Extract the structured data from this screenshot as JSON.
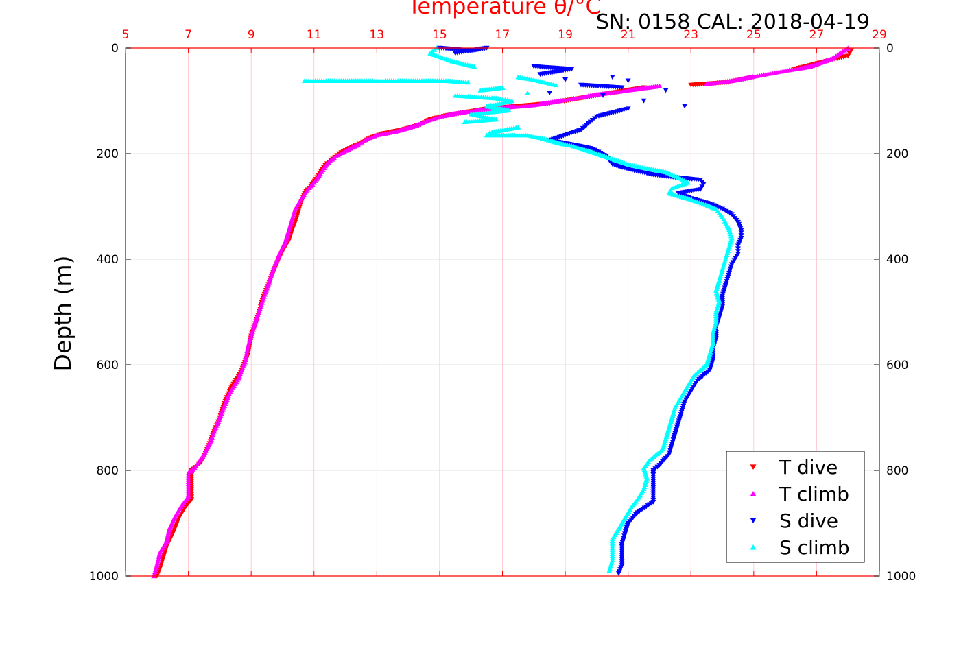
{
  "chart_data": {
    "type": "scatter",
    "title": "Temperature θ/°C",
    "subtitle": "SN: 0158  CAL: 2018-04-19",
    "xlabel": "Temperature θ/°C",
    "ylabel": "Depth (m)",
    "xlim": [
      5,
      29
    ],
    "ylim": [
      0,
      1000
    ],
    "y_reversed": true,
    "x_ticks": [
      "5",
      "7",
      "9",
      "11",
      "13",
      "15",
      "17",
      "19",
      "21",
      "23",
      "25",
      "27",
      "29"
    ],
    "y_ticks": [
      "0",
      "200",
      "400",
      "600",
      "800",
      "1000"
    ],
    "grid": true,
    "legend_position": "bottom-right",
    "series": [
      {
        "name": "T dive",
        "marker": "triangle-down",
        "color": "#ff0000",
        "points": [
          [
            28.1,
            5
          ],
          [
            28.0,
            15
          ],
          [
            27.3,
            25
          ],
          [
            26.3,
            40
          ],
          [
            25.0,
            55
          ],
          [
            24.2,
            65
          ],
          [
            23.0,
            70
          ],
          [
            21.5,
            75
          ],
          [
            20.5,
            85
          ],
          [
            19.5,
            95
          ],
          [
            18.5,
            105
          ],
          [
            17.5,
            110
          ],
          [
            16.5,
            115
          ],
          [
            15.8,
            122
          ],
          [
            15.2,
            128
          ],
          [
            14.7,
            135
          ],
          [
            14.4,
            145
          ],
          [
            13.8,
            155
          ],
          [
            13.2,
            162
          ],
          [
            12.8,
            170
          ],
          [
            12.5,
            180
          ],
          [
            12.2,
            188
          ],
          [
            11.8,
            200
          ],
          [
            11.6,
            210
          ],
          [
            11.3,
            225
          ],
          [
            11.1,
            245
          ],
          [
            10.9,
            262
          ],
          [
            10.7,
            275
          ],
          [
            10.6,
            290
          ],
          [
            10.5,
            310
          ],
          [
            10.4,
            330
          ],
          [
            10.3,
            345
          ],
          [
            10.2,
            365
          ],
          [
            10.0,
            385
          ],
          [
            9.8,
            410
          ],
          [
            9.6,
            440
          ],
          [
            9.4,
            470
          ],
          [
            9.2,
            510
          ],
          [
            9.0,
            545
          ],
          [
            8.9,
            580
          ],
          [
            8.7,
            610
          ],
          [
            8.4,
            640
          ],
          [
            8.2,
            665
          ],
          [
            8.0,
            700
          ],
          [
            7.8,
            730
          ],
          [
            7.6,
            760
          ],
          [
            7.4,
            785
          ],
          [
            7.1,
            800
          ],
          [
            7.1,
            820
          ],
          [
            7.1,
            840
          ],
          [
            7.1,
            855
          ],
          [
            6.9,
            870
          ],
          [
            6.7,
            890
          ],
          [
            6.5,
            920
          ],
          [
            6.3,
            945
          ],
          [
            6.2,
            965
          ],
          [
            6.1,
            985
          ],
          [
            6.0,
            1000
          ]
        ]
      },
      {
        "name": "T climb",
        "marker": "triangle-up",
        "color": "#ff00ff",
        "points": [
          [
            28.0,
            0
          ],
          [
            27.5,
            20
          ],
          [
            26.8,
            35
          ],
          [
            25.8,
            45
          ],
          [
            24.9,
            55
          ],
          [
            24.3,
            62
          ],
          [
            23.5,
            68
          ],
          [
            22.0,
            72
          ],
          [
            21.0,
            80
          ],
          [
            20.0,
            88
          ],
          [
            19.0,
            98
          ],
          [
            18.0,
            108
          ],
          [
            17.2,
            112
          ],
          [
            16.3,
            117
          ],
          [
            15.6,
            123
          ],
          [
            15.0,
            130
          ],
          [
            14.6,
            138
          ],
          [
            14.2,
            148
          ],
          [
            13.6,
            158
          ],
          [
            13.0,
            165
          ],
          [
            12.7,
            172
          ],
          [
            12.4,
            183
          ],
          [
            12.1,
            192
          ],
          [
            11.7,
            205
          ],
          [
            11.4,
            220
          ],
          [
            11.2,
            238
          ],
          [
            11.0,
            255
          ],
          [
            10.8,
            268
          ],
          [
            10.6,
            285
          ],
          [
            10.4,
            305
          ],
          [
            10.3,
            325
          ],
          [
            10.2,
            345
          ],
          [
            10.1,
            365
          ],
          [
            9.9,
            390
          ],
          [
            9.7,
            420
          ],
          [
            9.5,
            455
          ],
          [
            9.3,
            490
          ],
          [
            9.1,
            525
          ],
          [
            8.9,
            565
          ],
          [
            8.8,
            595
          ],
          [
            8.6,
            625
          ],
          [
            8.3,
            655
          ],
          [
            8.1,
            685
          ],
          [
            7.9,
            715
          ],
          [
            7.7,
            745
          ],
          [
            7.5,
            770
          ],
          [
            7.2,
            795
          ],
          [
            7.0,
            805
          ],
          [
            7.0,
            830
          ],
          [
            7.0,
            850
          ],
          [
            6.8,
            865
          ],
          [
            6.6,
            885
          ],
          [
            6.4,
            910
          ],
          [
            6.3,
            935
          ],
          [
            6.1,
            955
          ],
          [
            6.0,
            980
          ],
          [
            5.9,
            1000
          ]
        ]
      },
      {
        "name": "S dive",
        "marker": "triangle-down",
        "color": "#0000ff",
        "points": [
          [
            15.0,
            0
          ],
          [
            16.0,
            5
          ],
          [
            16.5,
            0
          ],
          [
            15.5,
            10
          ],
          [
            18.0,
            35
          ],
          [
            19.2,
            40
          ],
          [
            18.2,
            50
          ],
          [
            20.5,
            55
          ],
          [
            19.0,
            60
          ],
          [
            21.0,
            62
          ],
          [
            19.5,
            70
          ],
          [
            20.8,
            75
          ],
          [
            22.2,
            80
          ],
          [
            18.5,
            85
          ],
          [
            20.2,
            90
          ],
          [
            21.5,
            100
          ],
          [
            22.8,
            110
          ],
          [
            21.0,
            115
          ],
          [
            20.0,
            130
          ],
          [
            19.8,
            140
          ],
          [
            19.5,
            155
          ],
          [
            19.0,
            165
          ],
          [
            18.5,
            175
          ],
          [
            19.4,
            185
          ],
          [
            19.8,
            190
          ],
          [
            20.0,
            195
          ],
          [
            20.3,
            205
          ],
          [
            20.5,
            220
          ],
          [
            21.0,
            230
          ],
          [
            21.8,
            240
          ],
          [
            22.5,
            245
          ],
          [
            23.3,
            250
          ],
          [
            23.4,
            258
          ],
          [
            23.3,
            268
          ],
          [
            22.6,
            275
          ],
          [
            23.0,
            285
          ],
          [
            23.6,
            295
          ],
          [
            24.0,
            305
          ],
          [
            24.3,
            315
          ],
          [
            24.5,
            330
          ],
          [
            24.6,
            345
          ],
          [
            24.6,
            360
          ],
          [
            24.5,
            375
          ],
          [
            24.5,
            390
          ],
          [
            24.3,
            410
          ],
          [
            24.2,
            430
          ],
          [
            24.1,
            450
          ],
          [
            24.0,
            470
          ],
          [
            24.0,
            490
          ],
          [
            23.9,
            510
          ],
          [
            23.8,
            530
          ],
          [
            23.8,
            550
          ],
          [
            23.7,
            570
          ],
          [
            23.7,
            590
          ],
          [
            23.6,
            610
          ],
          [
            23.2,
            630
          ],
          [
            23.0,
            650
          ],
          [
            22.8,
            670
          ],
          [
            22.7,
            690
          ],
          [
            22.6,
            710
          ],
          [
            22.5,
            730
          ],
          [
            22.4,
            750
          ],
          [
            22.3,
            770
          ],
          [
            22.0,
            790
          ],
          [
            21.8,
            800
          ],
          [
            21.8,
            820
          ],
          [
            21.8,
            840
          ],
          [
            21.8,
            860
          ],
          [
            21.3,
            880
          ],
          [
            21.0,
            900
          ],
          [
            20.9,
            920
          ],
          [
            20.8,
            940
          ],
          [
            20.8,
            960
          ],
          [
            20.8,
            980
          ],
          [
            20.7,
            995
          ]
        ]
      },
      {
        "name": "S climb",
        "marker": "triangle-up",
        "color": "#00ffff",
        "points": [
          [
            14.9,
            0
          ],
          [
            14.7,
            10
          ],
          [
            15.4,
            25
          ],
          [
            16.1,
            35
          ],
          [
            10.7,
            62
          ],
          [
            12.0,
            62
          ],
          [
            12.4,
            62
          ],
          [
            13.4,
            62
          ],
          [
            14.5,
            62
          ],
          [
            15.2,
            62
          ],
          [
            15.9,
            65
          ],
          [
            17.5,
            55
          ],
          [
            18.0,
            60
          ],
          [
            18.7,
            70
          ],
          [
            17.0,
            75
          ],
          [
            16.3,
            80
          ],
          [
            17.8,
            85
          ],
          [
            15.5,
            90
          ],
          [
            16.8,
            95
          ],
          [
            17.3,
            100
          ],
          [
            16.5,
            110
          ],
          [
            17.2,
            118
          ],
          [
            16.0,
            125
          ],
          [
            16.8,
            135
          ],
          [
            15.8,
            140
          ],
          [
            17.5,
            150
          ],
          [
            16.6,
            160
          ],
          [
            16.5,
            165
          ],
          [
            17.8,
            165
          ],
          [
            18.2,
            170
          ],
          [
            18.8,
            180
          ],
          [
            19.2,
            185
          ],
          [
            19.6,
            192
          ],
          [
            20.0,
            200
          ],
          [
            20.5,
            210
          ],
          [
            21.0,
            220
          ],
          [
            21.6,
            228
          ],
          [
            22.2,
            235
          ],
          [
            22.6,
            245
          ],
          [
            22.9,
            255
          ],
          [
            22.4,
            265
          ],
          [
            22.3,
            275
          ],
          [
            22.9,
            285
          ],
          [
            23.4,
            295
          ],
          [
            23.8,
            305
          ],
          [
            24.0,
            320
          ],
          [
            24.2,
            340
          ],
          [
            24.3,
            360
          ],
          [
            24.2,
            380
          ],
          [
            24.1,
            400
          ],
          [
            24.0,
            420
          ],
          [
            23.9,
            440
          ],
          [
            23.8,
            460
          ],
          [
            23.9,
            480
          ],
          [
            23.8,
            500
          ],
          [
            23.8,
            520
          ],
          [
            23.7,
            540
          ],
          [
            23.7,
            560
          ],
          [
            23.6,
            580
          ],
          [
            23.5,
            600
          ],
          [
            23.1,
            620
          ],
          [
            22.9,
            640
          ],
          [
            22.7,
            660
          ],
          [
            22.5,
            680
          ],
          [
            22.4,
            700
          ],
          [
            22.3,
            720
          ],
          [
            22.2,
            740
          ],
          [
            22.1,
            760
          ],
          [
            21.7,
            780
          ],
          [
            21.5,
            795
          ],
          [
            21.6,
            815
          ],
          [
            21.5,
            835
          ],
          [
            21.3,
            855
          ],
          [
            21.1,
            870
          ],
          [
            20.9,
            890
          ],
          [
            20.7,
            910
          ],
          [
            20.5,
            930
          ],
          [
            20.5,
            950
          ],
          [
            20.5,
            970
          ],
          [
            20.4,
            990
          ]
        ]
      }
    ]
  }
}
